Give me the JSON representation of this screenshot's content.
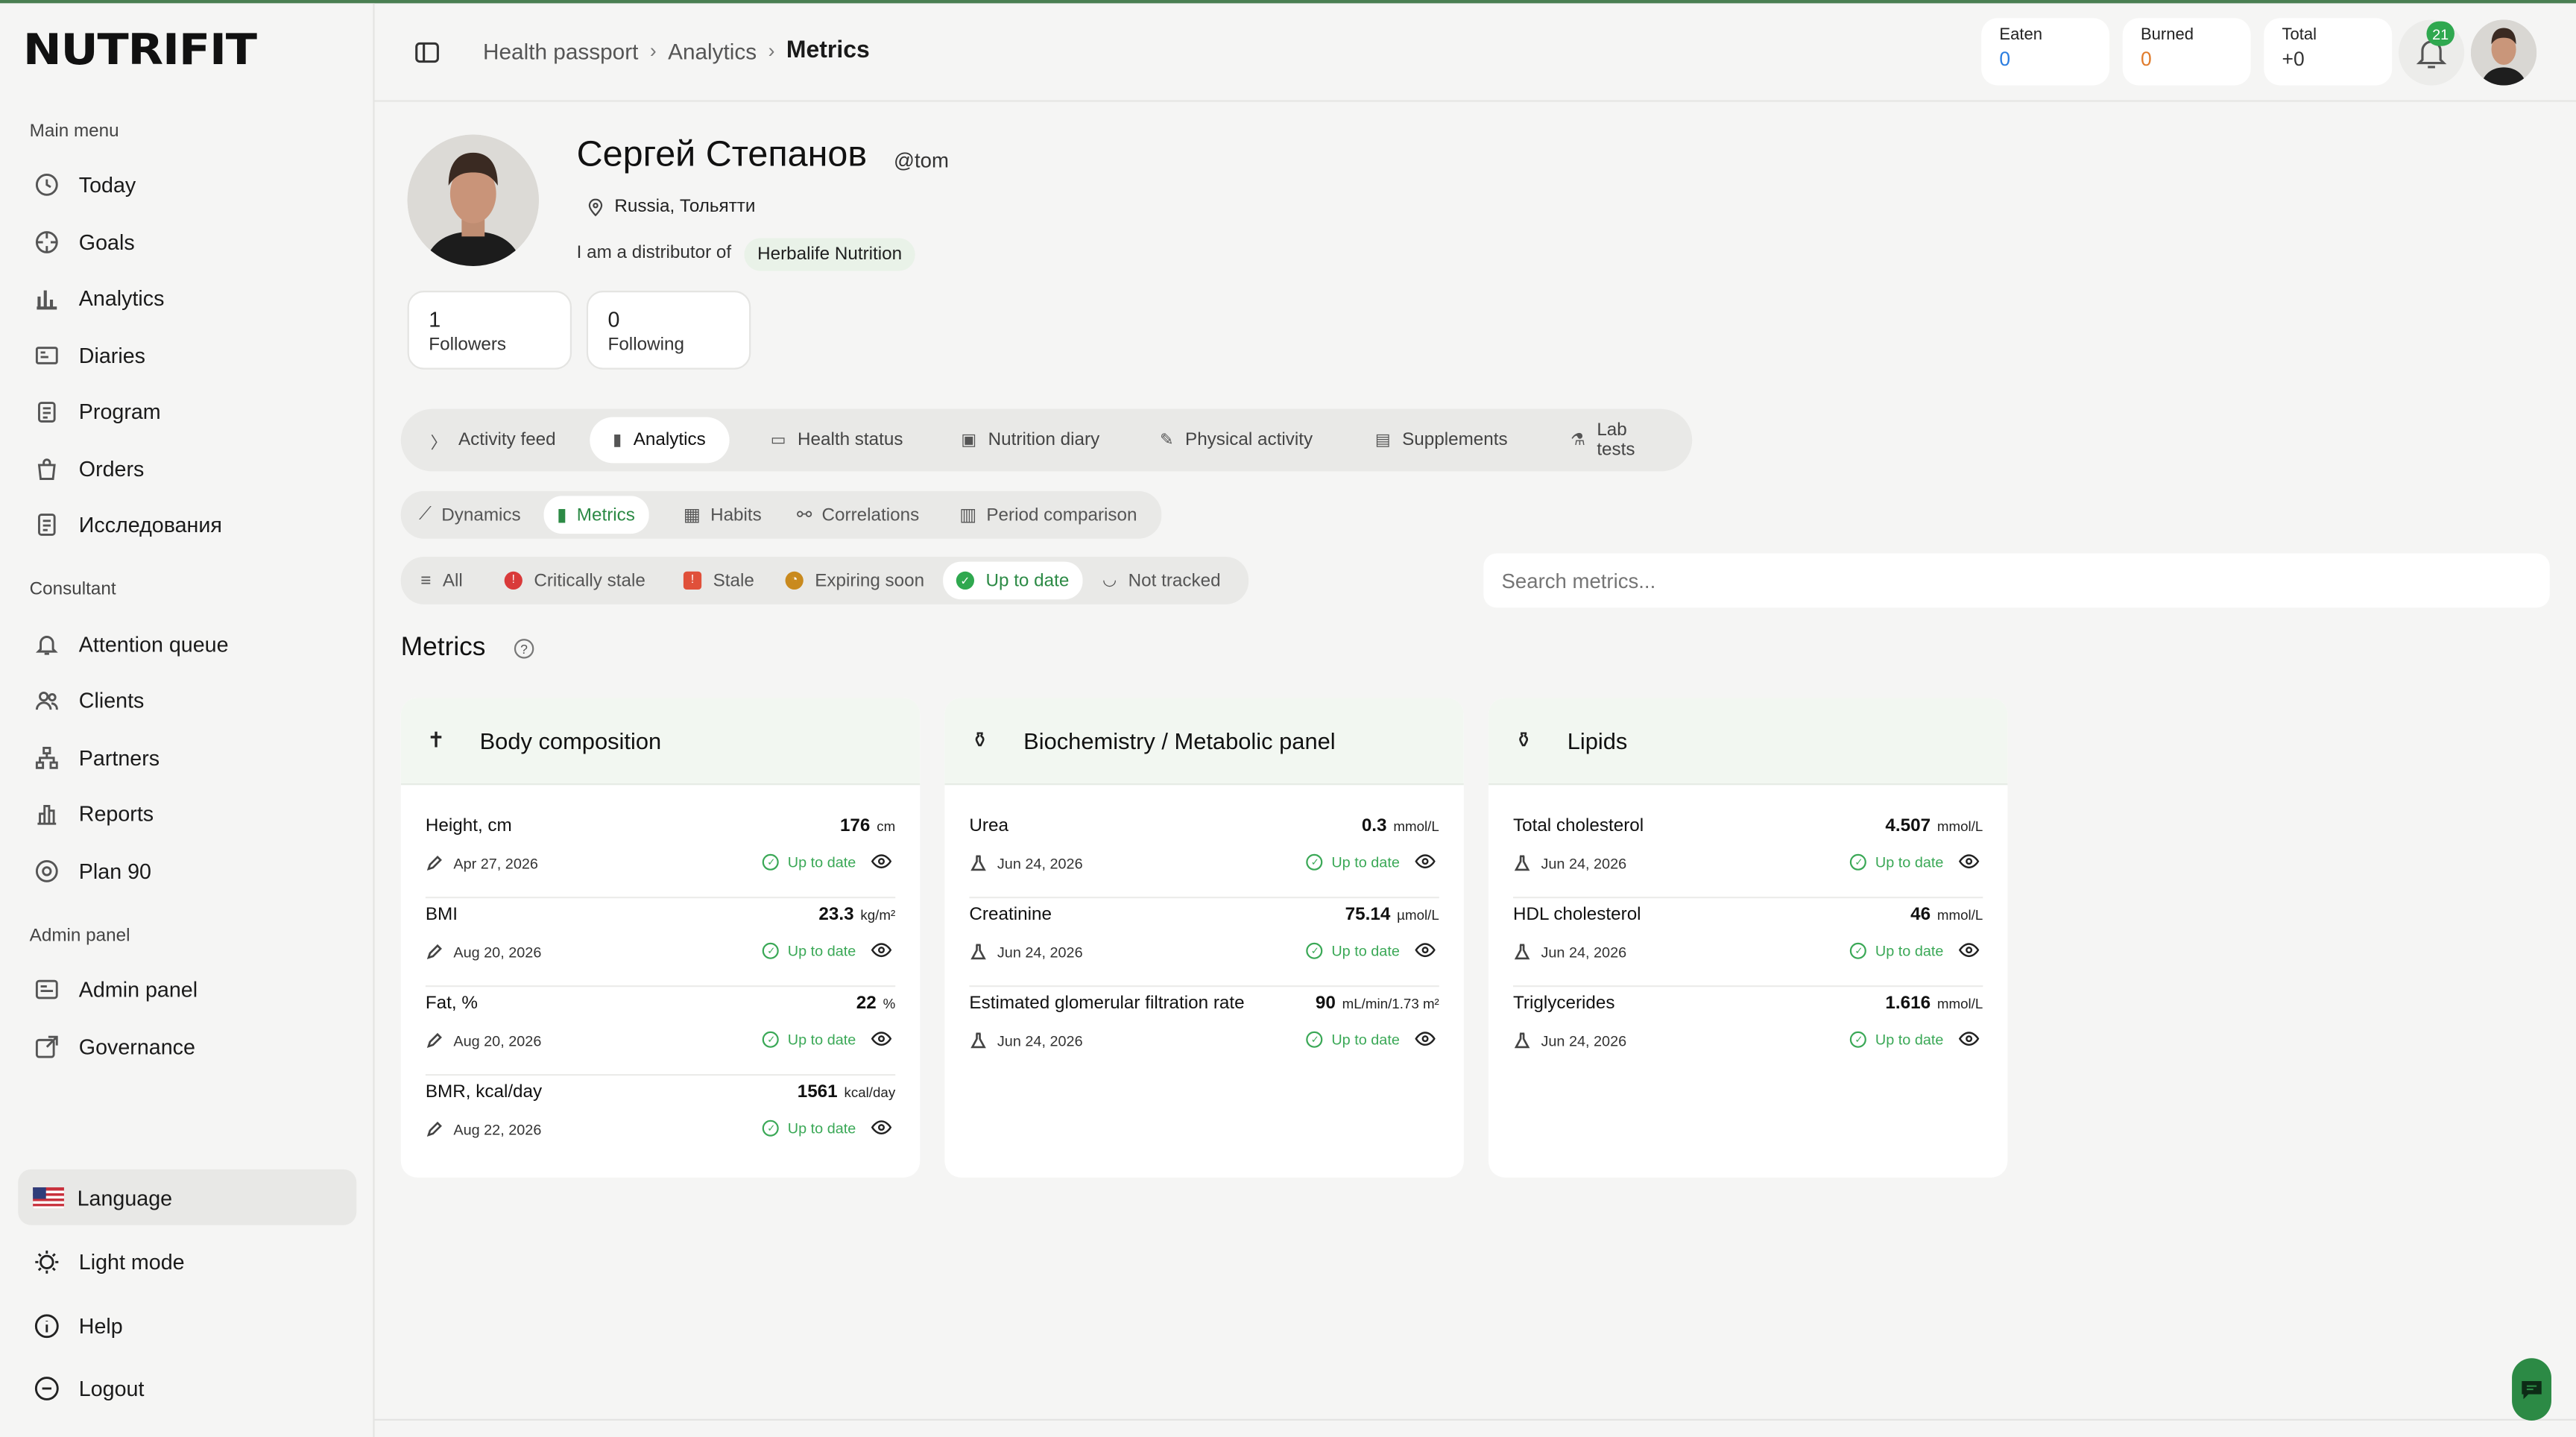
{
  "app": {
    "logo": "NUTRIFIT"
  },
  "sidebar": {
    "main_menu": "Main menu",
    "main": [
      "Today",
      "Goals",
      "Analytics",
      "Diaries",
      "Program",
      "Orders",
      "Исследования"
    ],
    "consultant": "Consultant",
    "consultant_items": [
      "Attention queue",
      "Clients",
      "Partners",
      "Reports",
      "Plan 90"
    ],
    "admin": "Admin panel",
    "admin_items": [
      "Admin panel",
      "Governance"
    ],
    "bottom": [
      "Language",
      "Light mode",
      "Help",
      "Logout"
    ]
  },
  "breadcrumb": [
    "Health passport",
    "Analytics",
    "Metrics"
  ],
  "stats": {
    "eaten_label": "Eaten",
    "eaten_value": "0",
    "burned_label": "Burned",
    "burned_value": "0",
    "total_label": "Total",
    "total_value": "+0"
  },
  "notifications": {
    "count": "21"
  },
  "profile": {
    "name": "Сергей Степанов",
    "handle": "@tom",
    "location": "Russia, Тольятти",
    "distributor_text": "I am a distributor of",
    "distributor_brand": "Herbalife Nutrition",
    "followers_count": "1",
    "followers_label": "Followers",
    "following_count": "0",
    "following_label": "Following"
  },
  "tabs": [
    "Activity feed",
    "Analytics",
    "Health status",
    "Nutrition diary",
    "Physical activity",
    "Supplements",
    "Lab tests"
  ],
  "subtabs": [
    "Dynamics",
    "Metrics",
    "Habits",
    "Correlations",
    "Period comparison"
  ],
  "filters": [
    "All",
    "Critically stale",
    "Stale",
    "Expiring soon",
    "Up to date",
    "Not tracked"
  ],
  "search": {
    "placeholder": "Search metrics..."
  },
  "metrics_title": "Metrics",
  "cards": [
    {
      "title": "Body composition",
      "rows": [
        {
          "name": "Height, cm",
          "value": "176",
          "unit": "cm",
          "date": "Apr 27, 2026",
          "status": "Up to date"
        },
        {
          "name": "BMI",
          "value": "23.3",
          "unit": "kg/m²",
          "date": "Aug 20, 2026",
          "status": "Up to date"
        },
        {
          "name": "Fat, %",
          "value": "22",
          "unit": "%",
          "date": "Aug 20, 2026",
          "status": "Up to date"
        },
        {
          "name": "BMR, kcal/day",
          "value": "1561",
          "unit": "kcal/day",
          "date": "Aug 22, 2026",
          "status": "Up to date"
        }
      ]
    },
    {
      "title": "Biochemistry / Metabolic panel",
      "rows": [
        {
          "name": "Urea",
          "value": "0.3",
          "unit": "mmol/L",
          "date": "Jun 24, 2026",
          "status": "Up to date"
        },
        {
          "name": "Creatinine",
          "value": "75.14",
          "unit": "µmol/L",
          "date": "Jun 24, 2026",
          "status": "Up to date"
        },
        {
          "name": "Estimated glomerular filtration rate",
          "value": "90",
          "unit": "mL/min/1.73 m²",
          "date": "Jun 24, 2026",
          "status": "Up to date"
        }
      ]
    },
    {
      "title": "Lipids",
      "rows": [
        {
          "name": "Total cholesterol",
          "value": "4.507",
          "unit": "mmol/L",
          "date": "Jun 24, 2026",
          "status": "Up to date"
        },
        {
          "name": "HDL cholesterol",
          "value": "46",
          "unit": "mmol/L",
          "date": "Jun 24, 2026",
          "status": "Up to date"
        },
        {
          "name": "Triglycerides",
          "value": "1.616",
          "unit": "mmol/L",
          "date": "Jun 24, 2026",
          "status": "Up to date"
        }
      ]
    }
  ],
  "colors": {
    "accent": "#2c8a45",
    "eaten": "#2b7de0",
    "burned": "#e07b2b"
  }
}
